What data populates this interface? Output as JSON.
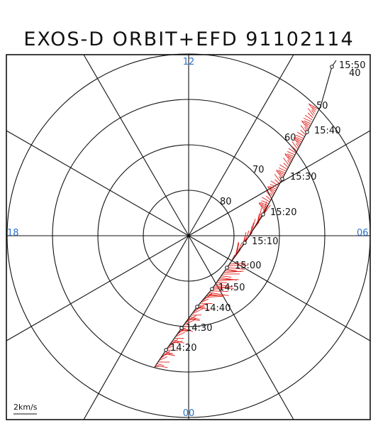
{
  "title": "EXOS-D ORBIT+EFD 91102114",
  "mlt_labels": {
    "top": "12",
    "left": "18",
    "right": "06",
    "bottom": "00"
  },
  "latitude_labels": [
    "40",
    "50",
    "60",
    "70",
    "80"
  ],
  "time_labels": [
    "14:20",
    "14:30",
    "14:40",
    "14:50",
    "15:00",
    "15:10",
    "15:20",
    "15:30",
    "15:40",
    "15:50"
  ],
  "scale_label": "2km/s",
  "colors": {
    "grid": "#111111",
    "mlt": "#2a72c8",
    "vectors": "#e0201c",
    "orbit": "#111111"
  }
}
